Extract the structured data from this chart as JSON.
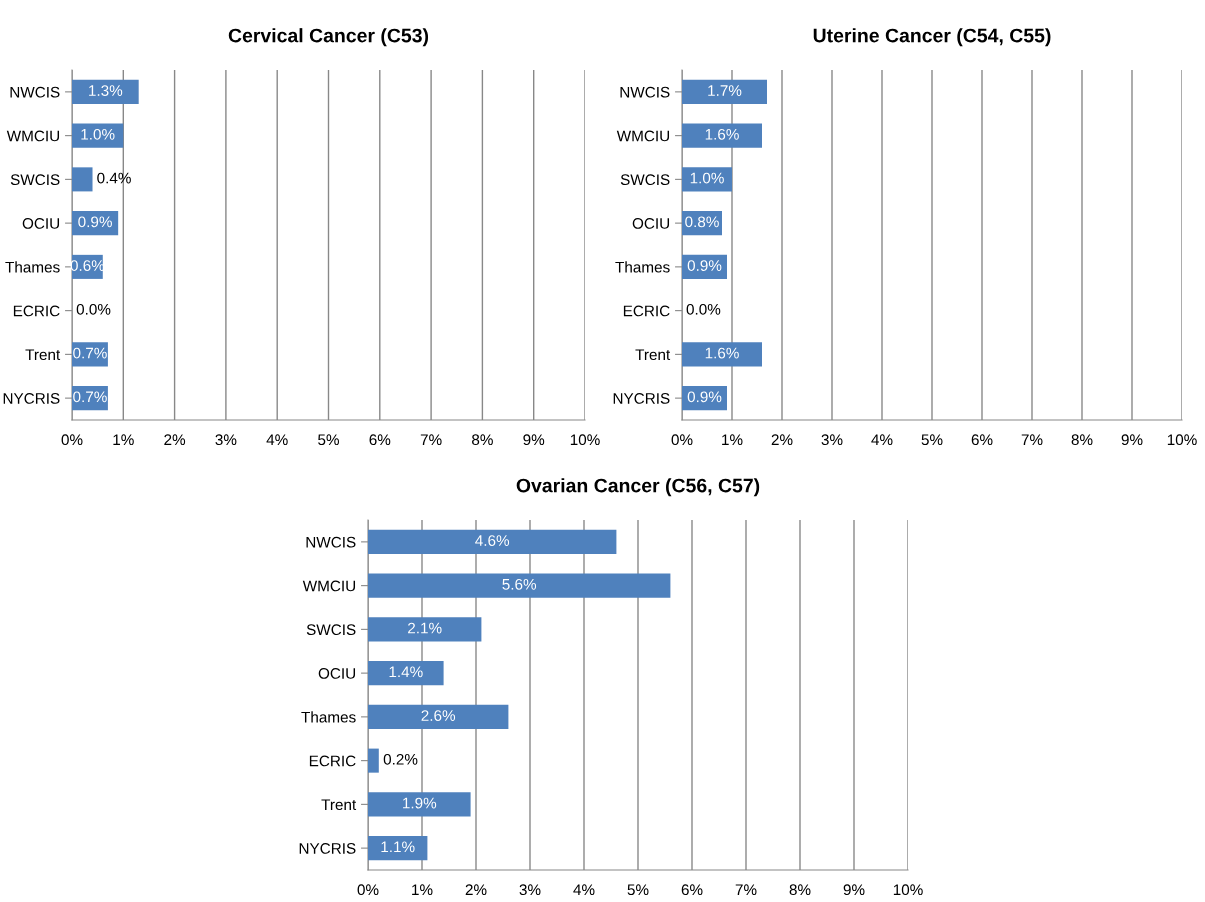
{
  "chart_data": [
    {
      "type": "bar",
      "orientation": "horizontal",
      "title": "Cervical Cancer (C53)",
      "categories": [
        "NWCIS",
        "WMCIU",
        "SWCIS",
        "OCIU",
        "Thames",
        "ECRIC",
        "Trent",
        "NYCRIS"
      ],
      "values": [
        1.3,
        1.0,
        0.4,
        0.9,
        0.6,
        0.0,
        0.7,
        0.7
      ],
      "value_labels": [
        "1.3%",
        "1.0%",
        "0.4%",
        "0.9%",
        "0.6%",
        "0.0%",
        "0.7%",
        "0.7%"
      ],
      "color": "#4f81bd",
      "xlim": [
        0,
        10
      ],
      "xticks": [
        {
          "value": 0,
          "label": "0%"
        },
        {
          "value": 1,
          "label": "1%"
        },
        {
          "value": 2,
          "label": "2%"
        },
        {
          "value": 3,
          "label": "3%"
        },
        {
          "value": 4,
          "label": "4%"
        },
        {
          "value": 5,
          "label": "5%"
        },
        {
          "value": 6,
          "label": "6%"
        },
        {
          "value": 7,
          "label": "7%"
        },
        {
          "value": 8,
          "label": "8%"
        },
        {
          "value": 9,
          "label": "9%"
        },
        {
          "value": 10,
          "label": "10%"
        }
      ],
      "grid": "x",
      "legend": false
    },
    {
      "type": "bar",
      "orientation": "horizontal",
      "title": "Uterine Cancer (C54, C55)",
      "categories": [
        "NWCIS",
        "WMCIU",
        "SWCIS",
        "OCIU",
        "Thames",
        "ECRIC",
        "Trent",
        "NYCRIS"
      ],
      "values": [
        1.7,
        1.6,
        1.0,
        0.8,
        0.9,
        0.0,
        1.6,
        0.9
      ],
      "value_labels": [
        "1.7%",
        "1.6%",
        "1.0%",
        "0.8%",
        "0.9%",
        "0.0%",
        "1.6%",
        "0.9%"
      ],
      "color": "#4f81bd",
      "xlim": [
        0,
        10
      ],
      "xticks": [
        {
          "value": 0,
          "label": "0%"
        },
        {
          "value": 1,
          "label": "1%"
        },
        {
          "value": 2,
          "label": "2%"
        },
        {
          "value": 3,
          "label": "3%"
        },
        {
          "value": 4,
          "label": "4%"
        },
        {
          "value": 5,
          "label": "5%"
        },
        {
          "value": 6,
          "label": "6%"
        },
        {
          "value": 7,
          "label": "7%"
        },
        {
          "value": 8,
          "label": "8%"
        },
        {
          "value": 9,
          "label": "9%"
        },
        {
          "value": 10,
          "label": "10%"
        }
      ],
      "grid": "x",
      "legend": false
    },
    {
      "type": "bar",
      "orientation": "horizontal",
      "title": "Ovarian Cancer (C56, C57)",
      "categories": [
        "NWCIS",
        "WMCIU",
        "SWCIS",
        "OCIU",
        "Thames",
        "ECRIC",
        "Trent",
        "NYCRIS"
      ],
      "values": [
        4.6,
        5.6,
        2.1,
        1.4,
        2.6,
        0.2,
        1.9,
        1.1
      ],
      "value_labels": [
        "4.6%",
        "5.6%",
        "2.1%",
        "1.4%",
        "2.6%",
        "0.2%",
        "1.9%",
        "1.1%"
      ],
      "color": "#4f81bd",
      "xlim": [
        0,
        10
      ],
      "xticks": [
        {
          "value": 0,
          "label": "0%"
        },
        {
          "value": 1,
          "label": "1%"
        },
        {
          "value": 2,
          "label": "2%"
        },
        {
          "value": 3,
          "label": "3%"
        },
        {
          "value": 4,
          "label": "4%"
        },
        {
          "value": 5,
          "label": "5%"
        },
        {
          "value": 6,
          "label": "6%"
        },
        {
          "value": 7,
          "label": "7%"
        },
        {
          "value": 8,
          "label": "8%"
        },
        {
          "value": 9,
          "label": "9%"
        },
        {
          "value": 10,
          "label": "10%"
        }
      ],
      "grid": "x",
      "legend": false
    }
  ]
}
